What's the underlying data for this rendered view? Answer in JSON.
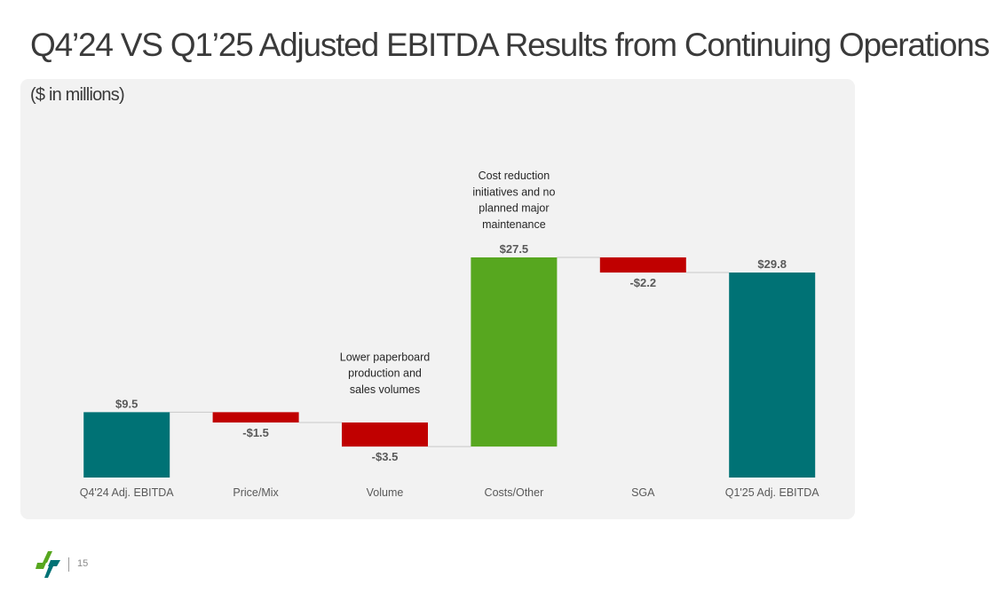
{
  "title": "Q4’24 VS Q1’25 Adjusted EBITDA Results from Continuing Operations",
  "subtitle": "($ in millions)",
  "page_number": "15",
  "logo": "company-logo",
  "colors": {
    "total": "#007275",
    "decrease": "#c00000",
    "increase": "#57a71f",
    "panel": "#f2f2f2",
    "connector": "#c8c8c8"
  },
  "chart_data": {
    "type": "bar",
    "subtype": "waterfall",
    "title": "",
    "xlabel": "",
    "ylabel": "",
    "ylim": [
      0,
      35
    ],
    "grid": false,
    "categories": [
      "Q4'24 Adj. EBITDA",
      "Price/Mix",
      "Volume",
      "Costs/Other",
      "SGA",
      "Q1'25 Adj. EBITDA"
    ],
    "values": [
      9.5,
      -1.5,
      -3.5,
      27.5,
      -2.2,
      29.8
    ],
    "kinds": [
      "total",
      "decrease",
      "decrease",
      "increase",
      "decrease",
      "total"
    ],
    "data_labels": [
      "$9.5",
      "-$1.5",
      "-$3.5",
      "$27.5",
      "-$2.2",
      "$29.8"
    ],
    "annotations": [
      {
        "category": "Volume",
        "lines": [
          "Lower paperboard",
          "production and",
          "sales volumes"
        ]
      },
      {
        "category": "Costs/Other",
        "lines": [
          "Cost reduction",
          "initiatives and no",
          "planned major",
          "maintenance"
        ]
      }
    ]
  }
}
